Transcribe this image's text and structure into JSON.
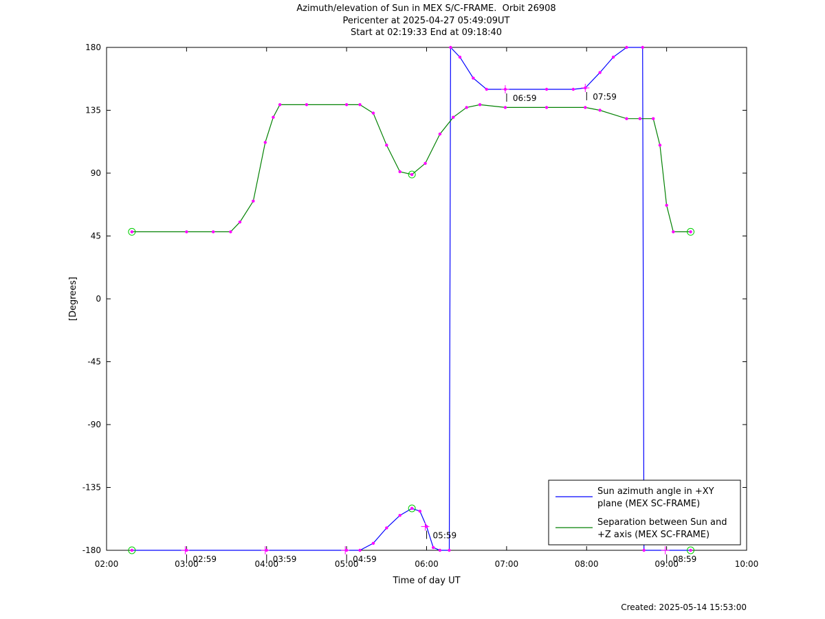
{
  "header": {
    "title": "Azimuth/elevation of Sun in MEX S/C-FRAME.  Orbit 26908",
    "subtitle1": "Pericenter at 2025-04-27 05:49:09UT",
    "subtitle2": "Start at 02:19:33 End at 09:18:40"
  },
  "footer": {
    "created": "Created: 2025-05-14 15:53:00"
  },
  "chart_data": {
    "type": "line",
    "title": "Azimuth/elevation of Sun in MEX S/C-FRAME.  Orbit 26908",
    "xlabel": "Time of day UT",
    "ylabel": "[Degrees]",
    "xlim": [
      "02:00",
      "10:00"
    ],
    "ylim": [
      -180,
      180
    ],
    "x_ticks": [
      "02:00",
      "03:00",
      "04:00",
      "05:00",
      "06:00",
      "07:00",
      "08:00",
      "09:00",
      "10:00"
    ],
    "y_ticks": [
      180,
      135,
      90,
      45,
      0,
      -45,
      -90,
      -135,
      -180
    ],
    "grid": false,
    "legend_position": "bottom-right",
    "series": [
      {
        "name": "Sun azimuth angle in +XY plane (MEX SC-FRAME)",
        "color": "#0000ff",
        "points": [
          [
            "02:19",
            -180
          ],
          [
            "03:00",
            -180
          ],
          [
            "04:00",
            -180
          ],
          [
            "05:00",
            -180
          ],
          [
            "05:10",
            -180
          ],
          [
            "05:20",
            -175
          ],
          [
            "05:30",
            -164
          ],
          [
            "05:40",
            -155
          ],
          [
            "05:49",
            -150
          ],
          [
            "05:55",
            -152
          ],
          [
            "06:00",
            -163
          ],
          [
            "06:05",
            -178
          ],
          [
            "06:10",
            -180
          ],
          [
            "06:17",
            -180
          ],
          [
            "06:18",
            180
          ],
          [
            "06:25",
            173
          ],
          [
            "06:35",
            158
          ],
          [
            "06:45",
            150
          ],
          [
            "06:59",
            150
          ],
          [
            "07:30",
            150
          ],
          [
            "07:50",
            150
          ],
          [
            "07:59",
            151
          ],
          [
            "08:10",
            162
          ],
          [
            "08:20",
            173
          ],
          [
            "08:30",
            180
          ],
          [
            "08:42",
            180
          ],
          [
            "08:43",
            -180
          ],
          [
            "09:18",
            -180
          ]
        ]
      },
      {
        "name": "Separation between Sun and +Z axis (MEX SC-FRAME)",
        "color": "#008000",
        "points": [
          [
            "02:19",
            48
          ],
          [
            "03:00",
            48
          ],
          [
            "03:20",
            48
          ],
          [
            "03:33",
            48
          ],
          [
            "03:40",
            55
          ],
          [
            "03:50",
            70
          ],
          [
            "03:59",
            112
          ],
          [
            "04:05",
            130
          ],
          [
            "04:10",
            139
          ],
          [
            "04:30",
            139
          ],
          [
            "05:00",
            139
          ],
          [
            "05:10",
            139
          ],
          [
            "05:20",
            133
          ],
          [
            "05:30",
            110
          ],
          [
            "05:40",
            91
          ],
          [
            "05:49",
            89
          ],
          [
            "05:59",
            97
          ],
          [
            "06:10",
            118
          ],
          [
            "06:20",
            130
          ],
          [
            "06:30",
            137
          ],
          [
            "06:40",
            139
          ],
          [
            "06:59",
            137
          ],
          [
            "07:30",
            137
          ],
          [
            "07:59",
            137
          ],
          [
            "08:10",
            135
          ],
          [
            "08:30",
            129
          ],
          [
            "08:40",
            129
          ],
          [
            "08:50",
            129
          ],
          [
            "08:55",
            110
          ],
          [
            "09:00",
            67
          ],
          [
            "09:05",
            48
          ],
          [
            "09:18",
            48
          ]
        ]
      }
    ],
    "annotations": [
      {
        "text": "02:59",
        "series": 0,
        "x": "02:59",
        "y": -180
      },
      {
        "text": "03:59",
        "series": 0,
        "x": "03:59",
        "y": -180
      },
      {
        "text": "04:59",
        "series": 0,
        "x": "04:59",
        "y": -180
      },
      {
        "text": "05:59",
        "series": 0,
        "x": "05:59",
        "y": -163
      },
      {
        "text": "06:59",
        "series": 0,
        "x": "06:59",
        "y": 150
      },
      {
        "text": "07:59",
        "series": 0,
        "x": "07:59",
        "y": 151
      },
      {
        "text": "08:59",
        "series": 0,
        "x": "08:59",
        "y": -180
      }
    ],
    "markers": {
      "circles": [
        {
          "x": "02:19",
          "y": 48
        },
        {
          "x": "05:49",
          "y": 89
        },
        {
          "x": "09:18",
          "y": 48
        },
        {
          "x": "02:19",
          "y": -180
        },
        {
          "x": "05:49",
          "y": -150
        },
        {
          "x": "09:18",
          "y": -180
        }
      ]
    }
  }
}
